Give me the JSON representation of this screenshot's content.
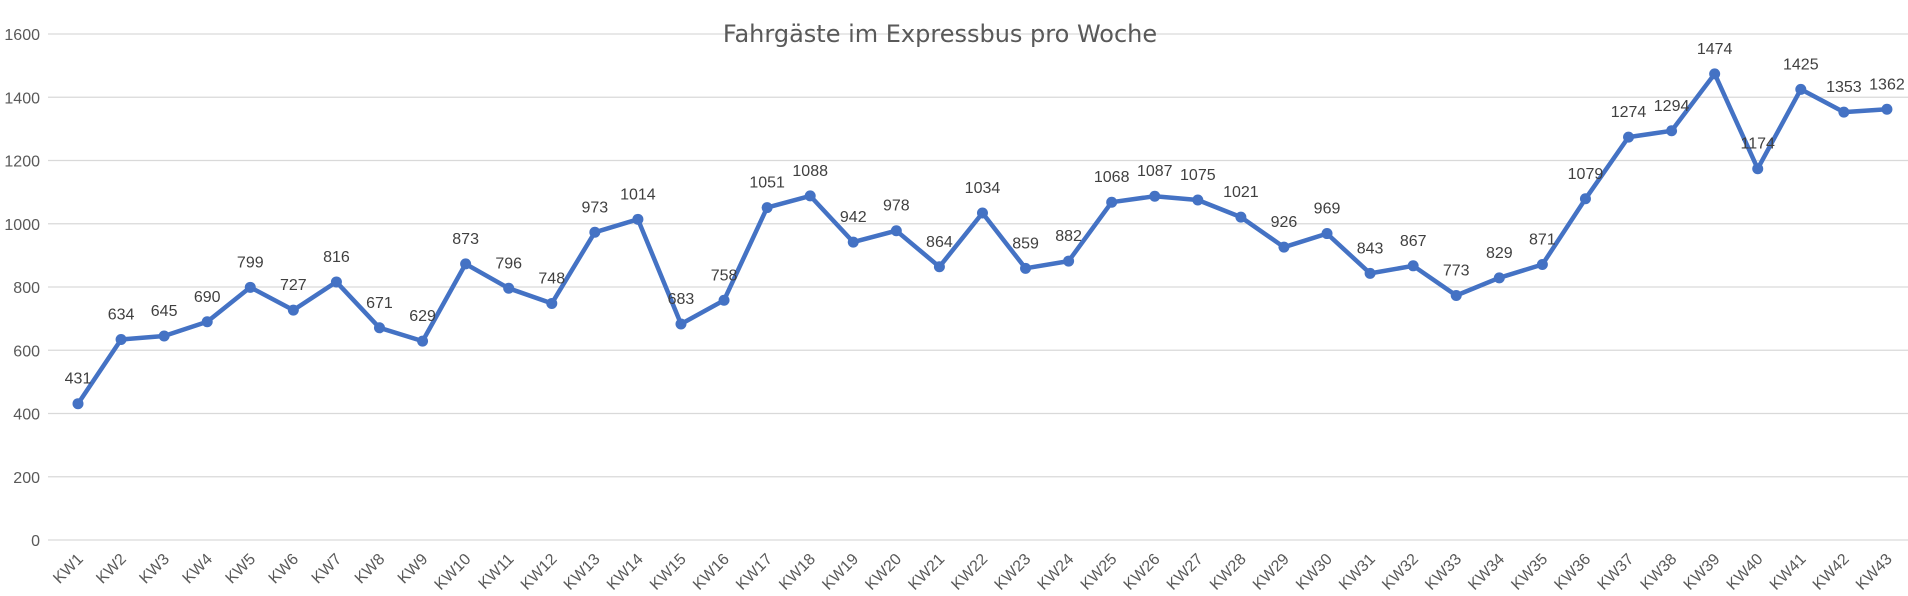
{
  "chart_data": {
    "type": "line",
    "title": "Fahrgäste im Expressbus pro Woche",
    "xlabel": "",
    "ylabel": "",
    "ylim": [
      0,
      1600
    ],
    "yticks": [
      0,
      200,
      400,
      600,
      800,
      1000,
      1200,
      1400,
      1600
    ],
    "grid": true,
    "legend": "none",
    "categories": [
      "KW1",
      "KW2",
      "KW3",
      "KW4",
      "KW5",
      "KW6",
      "KW7",
      "KW8",
      "KW9",
      "KW10",
      "KW11",
      "KW12",
      "KW13",
      "KW14",
      "KW15",
      "KW16",
      "KW17",
      "KW18",
      "KW19",
      "KW20",
      "KW21",
      "KW22",
      "KW23",
      "KW24",
      "KW25",
      "KW26",
      "KW27",
      "KW28",
      "KW29",
      "KW30",
      "KW31",
      "KW32",
      "KW33",
      "KW34",
      "KW35",
      "KW36",
      "KW37",
      "KW38",
      "KW39",
      "KW40",
      "KW41",
      "KW42",
      "KW43"
    ],
    "series": [
      {
        "color": "#4472c4",
        "values": [
          431,
          634,
          645,
          690,
          799,
          727,
          816,
          671,
          629,
          873,
          796,
          748,
          973,
          1014,
          683,
          758,
          1051,
          1088,
          942,
          978,
          864,
          1034,
          859,
          882,
          1068,
          1087,
          1075,
          1021,
          926,
          969,
          843,
          867,
          773,
          829,
          871,
          1079,
          1274,
          1294,
          1474,
          1174,
          1425,
          1353,
          1362
        ],
        "data_labels": true
      }
    ]
  }
}
